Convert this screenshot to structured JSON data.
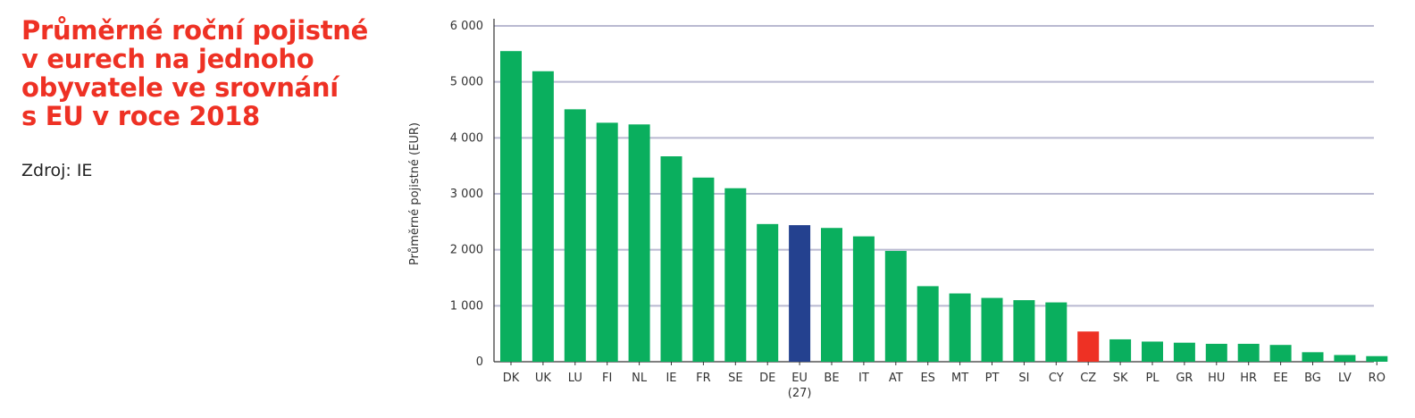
{
  "title_lines": [
    "Průměrné roční pojistné",
    "v eurech na jednoho",
    "obyvatele ve srovnání",
    "s EU v roce 2018"
  ],
  "source": "Zdroj: IE",
  "chart_data": {
    "type": "bar",
    "ylabel": "Průměrné pojistné (EUR)",
    "ylim": [
      0,
      6000
    ],
    "yticks": [
      0,
      1000,
      2000,
      3000,
      4000,
      5000,
      6000
    ],
    "ytick_labels": [
      "0",
      "1 000",
      "2 000",
      "3 000",
      "4 000",
      "5 000",
      "6 000"
    ],
    "grid": true,
    "categories": [
      "DK",
      "UK",
      "LU",
      "FI",
      "NL",
      "IE",
      "FR",
      "SE",
      "DE",
      "EU",
      "BE",
      "IT",
      "AT",
      "ES",
      "MT",
      "PT",
      "SI",
      "CY",
      "CZ",
      "SK",
      "PL",
      "GR",
      "HU",
      "HR",
      "EE",
      "BG",
      "LV",
      "RO"
    ],
    "category_sublabels": {
      "EU": "(27)"
    },
    "values": [
      5550,
      5190,
      4510,
      4270,
      4240,
      3670,
      3290,
      3100,
      2460,
      2440,
      2390,
      2240,
      1980,
      1350,
      1220,
      1140,
      1100,
      1060,
      540,
      400,
      360,
      340,
      320,
      320,
      300,
      170,
      120,
      100
    ],
    "colors": {
      "default": "#0aaf5e",
      "EU": "#24418f",
      "CZ": "#ee3124",
      "grid": "#b9b9d1",
      "axis": "#333333"
    }
  }
}
